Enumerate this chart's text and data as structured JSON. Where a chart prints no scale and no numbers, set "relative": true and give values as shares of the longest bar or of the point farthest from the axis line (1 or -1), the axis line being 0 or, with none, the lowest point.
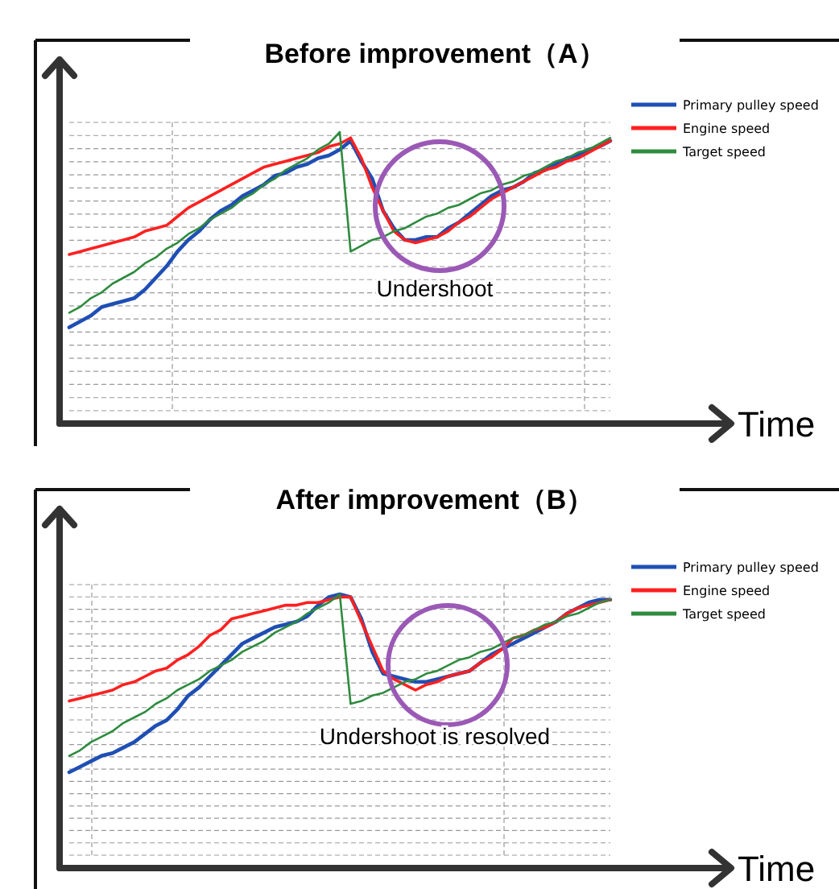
{
  "chart_data": [
    {
      "type": "line",
      "title": "Before improvement（A）",
      "xlabel": "Time",
      "relative": true,
      "grid": true,
      "legend": "right",
      "annotations": [
        "Undershoot"
      ],
      "categories": [
        null,
        null,
        null,
        null,
        null,
        null,
        null,
        null,
        null,
        null,
        null,
        null,
        null,
        null,
        null,
        null,
        null,
        null,
        null,
        null,
        null,
        null,
        null,
        null,
        null,
        null,
        null,
        null,
        null,
        null,
        null,
        null,
        null,
        null,
        null,
        null,
        null,
        null,
        null,
        null,
        null,
        null,
        null,
        null,
        null,
        null,
        null,
        null,
        null,
        null,
        null
      ],
      "series": [
        {
          "name": "Primary pulley speed",
          "color": "#1f4fb4",
          "values": [
            0.33,
            0.35,
            0.37,
            0.4,
            0.41,
            0.42,
            0.43,
            0.46,
            0.5,
            0.54,
            0.59,
            0.63,
            0.66,
            0.7,
            0.73,
            0.75,
            0.78,
            0.8,
            0.82,
            0.85,
            0.86,
            0.88,
            0.89,
            0.91,
            0.92,
            0.94,
            0.97,
            0.9,
            0.84,
            0.73,
            0.67,
            0.63,
            0.63,
            0.64,
            0.64,
            0.67,
            0.69,
            0.72,
            0.75,
            0.78,
            0.8,
            0.81,
            0.83,
            0.86,
            0.87,
            0.89,
            0.91,
            0.92,
            0.94,
            0.95,
            0.97
          ]
        },
        {
          "name": "Engine speed",
          "color": "#ff2020",
          "values": [
            0.58,
            0.59,
            0.6,
            0.61,
            0.62,
            0.63,
            0.64,
            0.66,
            0.67,
            0.68,
            0.71,
            0.74,
            0.76,
            0.78,
            0.8,
            0.82,
            0.84,
            0.86,
            0.88,
            0.89,
            0.9,
            0.91,
            0.92,
            0.93,
            0.95,
            0.96,
            0.98,
            0.91,
            0.81,
            0.73,
            0.66,
            0.63,
            0.62,
            0.63,
            0.64,
            0.66,
            0.69,
            0.71,
            0.74,
            0.77,
            0.79,
            0.81,
            0.83,
            0.85,
            0.87,
            0.88,
            0.9,
            0.91,
            0.93,
            0.95,
            0.97
          ]
        },
        {
          "name": "Target speed",
          "color": "#2e8b3e",
          "values": [
            0.38,
            0.4,
            0.43,
            0.45,
            0.48,
            0.5,
            0.52,
            0.55,
            0.57,
            0.6,
            0.62,
            0.65,
            0.67,
            0.7,
            0.72,
            0.74,
            0.77,
            0.79,
            0.82,
            0.84,
            0.87,
            0.89,
            0.91,
            0.94,
            0.96,
            1.0,
            0.59,
            0.61,
            0.63,
            0.64,
            0.66,
            0.67,
            0.69,
            0.71,
            0.72,
            0.74,
            0.75,
            0.77,
            0.79,
            0.8,
            0.82,
            0.83,
            0.85,
            0.86,
            0.88,
            0.9,
            0.91,
            0.93,
            0.94,
            0.96,
            0.98
          ]
        }
      ]
    },
    {
      "type": "line",
      "title": "After improvement（B）",
      "xlabel": "Time",
      "relative": true,
      "grid": true,
      "legend": "right",
      "annotations": [
        "Undershoot is resolved"
      ],
      "categories": [
        null,
        null,
        null,
        null,
        null,
        null,
        null,
        null,
        null,
        null,
        null,
        null,
        null,
        null,
        null,
        null,
        null,
        null,
        null,
        null,
        null,
        null,
        null,
        null,
        null,
        null,
        null,
        null,
        null,
        null,
        null,
        null,
        null,
        null,
        null,
        null,
        null,
        null,
        null,
        null,
        null,
        null,
        null,
        null,
        null,
        null,
        null,
        null,
        null,
        null,
        null
      ],
      "series": [
        {
          "name": "Primary pulley speed",
          "color": "#1f4fb4",
          "values": [
            0.35,
            0.37,
            0.39,
            0.41,
            0.42,
            0.44,
            0.46,
            0.49,
            0.52,
            0.54,
            0.58,
            0.63,
            0.66,
            0.7,
            0.74,
            0.78,
            0.82,
            0.84,
            0.86,
            0.88,
            0.89,
            0.9,
            0.92,
            0.96,
            0.99,
            1.0,
            0.99,
            0.91,
            0.79,
            0.71,
            0.7,
            0.69,
            0.68,
            0.68,
            0.69,
            0.7,
            0.71,
            0.72,
            0.75,
            0.78,
            0.8,
            0.82,
            0.84,
            0.86,
            0.88,
            0.9,
            0.93,
            0.95,
            0.97,
            0.98,
            0.98
          ]
        },
        {
          "name": "Engine speed",
          "color": "#ff2020",
          "values": [
            0.61,
            0.62,
            0.63,
            0.64,
            0.65,
            0.67,
            0.68,
            0.7,
            0.72,
            0.73,
            0.76,
            0.78,
            0.81,
            0.85,
            0.87,
            0.91,
            0.92,
            0.93,
            0.94,
            0.95,
            0.96,
            0.96,
            0.97,
            0.97,
            0.98,
            0.99,
            0.99,
            0.9,
            0.81,
            0.72,
            0.69,
            0.67,
            0.65,
            0.67,
            0.68,
            0.7,
            0.71,
            0.72,
            0.75,
            0.77,
            0.8,
            0.84,
            0.85,
            0.87,
            0.88,
            0.9,
            0.93,
            0.95,
            0.96,
            0.97,
            0.98
          ]
        },
        {
          "name": "Target speed",
          "color": "#2e8b3e",
          "values": [
            0.41,
            0.43,
            0.46,
            0.48,
            0.5,
            0.53,
            0.55,
            0.57,
            0.6,
            0.62,
            0.65,
            0.67,
            0.69,
            0.72,
            0.74,
            0.76,
            0.79,
            0.81,
            0.83,
            0.86,
            0.88,
            0.9,
            0.93,
            0.95,
            0.97,
            1.0,
            0.6,
            0.61,
            0.63,
            0.64,
            0.66,
            0.68,
            0.69,
            0.71,
            0.72,
            0.74,
            0.76,
            0.77,
            0.79,
            0.8,
            0.82,
            0.84,
            0.85,
            0.87,
            0.89,
            0.9,
            0.92,
            0.93,
            0.95,
            0.97,
            0.98
          ]
        }
      ]
    }
  ]
}
